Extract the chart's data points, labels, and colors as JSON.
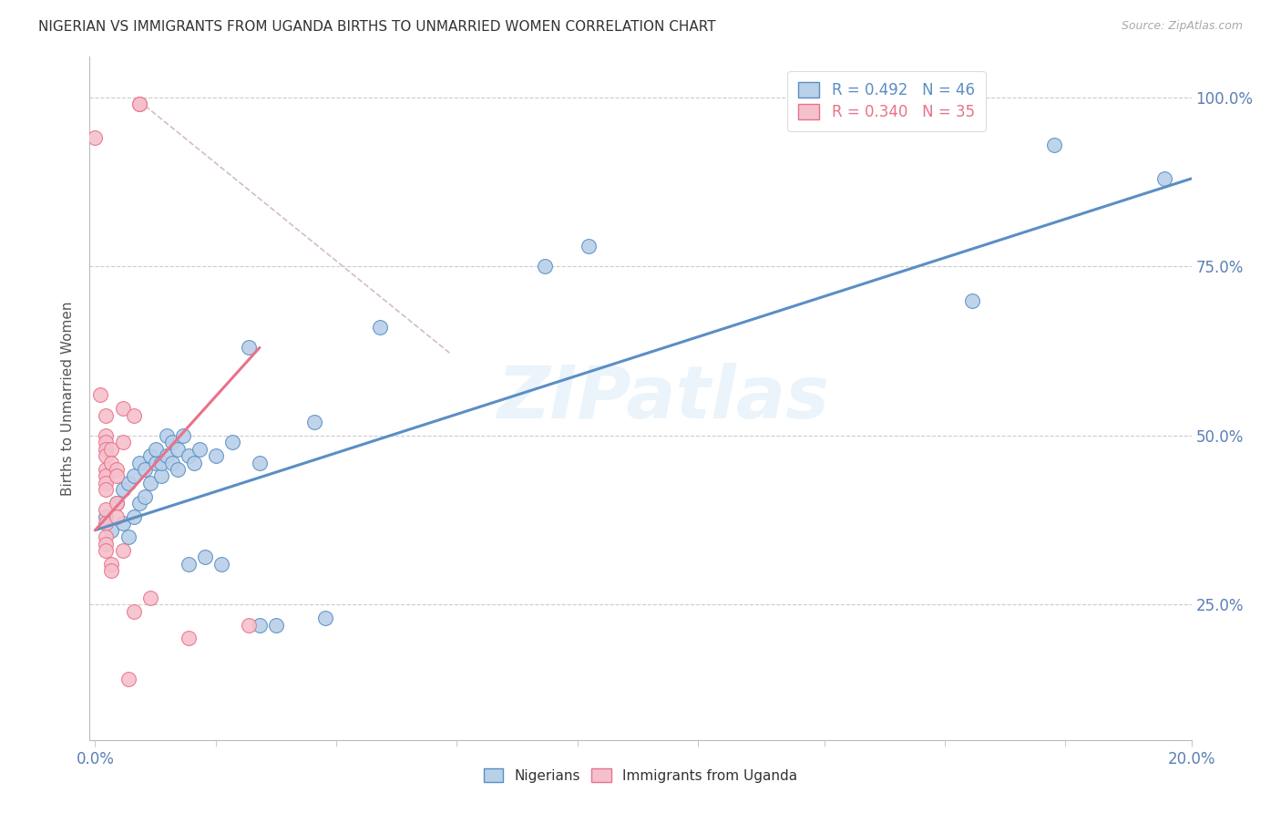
{
  "title": "NIGERIAN VS IMMIGRANTS FROM UGANDA BIRTHS TO UNMARRIED WOMEN CORRELATION CHART",
  "source": "Source: ZipAtlas.com",
  "ylabel": "Births to Unmarried Women",
  "legend_entries": [
    {
      "label": "R = 0.492   N = 46"
    },
    {
      "label": "R = 0.340   N = 35"
    }
  ],
  "legend_labels_bottom": [
    "Nigerians",
    "Immigrants from Uganda"
  ],
  "watermark": "ZIPatlas",
  "blue_color": "#5b8ec4",
  "pink_color": "#e8728a",
  "blue_light": "#b8d0e8",
  "pink_light": "#f5c0cc",
  "grid_color": "#cccccc",
  "axis_color": "#5b7fb5",
  "title_color": "#333333",
  "blue_scatter": [
    [
      0.002,
      0.38
    ],
    [
      0.003,
      0.36
    ],
    [
      0.004,
      0.4
    ],
    [
      0.005,
      0.37
    ],
    [
      0.005,
      0.42
    ],
    [
      0.006,
      0.43
    ],
    [
      0.006,
      0.35
    ],
    [
      0.007,
      0.38
    ],
    [
      0.007,
      0.44
    ],
    [
      0.008,
      0.46
    ],
    [
      0.008,
      0.4
    ],
    [
      0.009,
      0.41
    ],
    [
      0.009,
      0.45
    ],
    [
      0.01,
      0.47
    ],
    [
      0.01,
      0.43
    ],
    [
      0.011,
      0.46
    ],
    [
      0.011,
      0.48
    ],
    [
      0.012,
      0.44
    ],
    [
      0.012,
      0.46
    ],
    [
      0.013,
      0.5
    ],
    [
      0.013,
      0.47
    ],
    [
      0.014,
      0.46
    ],
    [
      0.014,
      0.49
    ],
    [
      0.015,
      0.48
    ],
    [
      0.015,
      0.45
    ],
    [
      0.016,
      0.5
    ],
    [
      0.017,
      0.31
    ],
    [
      0.017,
      0.47
    ],
    [
      0.018,
      0.46
    ],
    [
      0.019,
      0.48
    ],
    [
      0.02,
      0.32
    ],
    [
      0.022,
      0.47
    ],
    [
      0.023,
      0.31
    ],
    [
      0.025,
      0.49
    ],
    [
      0.028,
      0.63
    ],
    [
      0.03,
      0.46
    ],
    [
      0.03,
      0.22
    ],
    [
      0.033,
      0.22
    ],
    [
      0.04,
      0.52
    ],
    [
      0.042,
      0.23
    ],
    [
      0.052,
      0.66
    ],
    [
      0.082,
      0.75
    ],
    [
      0.09,
      0.78
    ],
    [
      0.16,
      0.7
    ],
    [
      0.175,
      0.93
    ],
    [
      0.195,
      0.88
    ]
  ],
  "pink_scatter": [
    [
      0.0,
      0.94
    ],
    [
      0.001,
      0.56
    ],
    [
      0.002,
      0.53
    ],
    [
      0.002,
      0.5
    ],
    [
      0.002,
      0.49
    ],
    [
      0.002,
      0.48
    ],
    [
      0.002,
      0.47
    ],
    [
      0.002,
      0.45
    ],
    [
      0.002,
      0.44
    ],
    [
      0.002,
      0.43
    ],
    [
      0.002,
      0.42
    ],
    [
      0.002,
      0.39
    ],
    [
      0.002,
      0.37
    ],
    [
      0.002,
      0.35
    ],
    [
      0.002,
      0.34
    ],
    [
      0.002,
      0.33
    ],
    [
      0.003,
      0.31
    ],
    [
      0.003,
      0.3
    ],
    [
      0.003,
      0.48
    ],
    [
      0.003,
      0.46
    ],
    [
      0.004,
      0.45
    ],
    [
      0.004,
      0.44
    ],
    [
      0.004,
      0.4
    ],
    [
      0.004,
      0.38
    ],
    [
      0.005,
      0.33
    ],
    [
      0.005,
      0.54
    ],
    [
      0.005,
      0.49
    ],
    [
      0.006,
      0.14
    ],
    [
      0.007,
      0.53
    ],
    [
      0.007,
      0.24
    ],
    [
      0.008,
      0.99
    ],
    [
      0.008,
      0.99
    ],
    [
      0.01,
      0.26
    ],
    [
      0.017,
      0.2
    ],
    [
      0.028,
      0.22
    ]
  ],
  "blue_line_x": [
    0.0,
    0.2
  ],
  "blue_line_y": [
    0.36,
    0.88
  ],
  "pink_line_x": [
    0.0,
    0.03
  ],
  "pink_line_y": [
    0.36,
    0.63
  ],
  "diag_line_x": [
    0.008,
    0.065
  ],
  "diag_line_y": [
    0.995,
    0.62
  ],
  "xmin": -0.001,
  "xmax": 0.2,
  "ymin": 0.05,
  "ymax": 1.06,
  "xtick_positions": [
    0.0,
    0.022,
    0.044,
    0.066,
    0.088,
    0.11,
    0.133,
    0.155,
    0.177,
    0.2
  ],
  "ytick_positions": [
    0.25,
    0.5,
    0.75,
    1.0
  ]
}
